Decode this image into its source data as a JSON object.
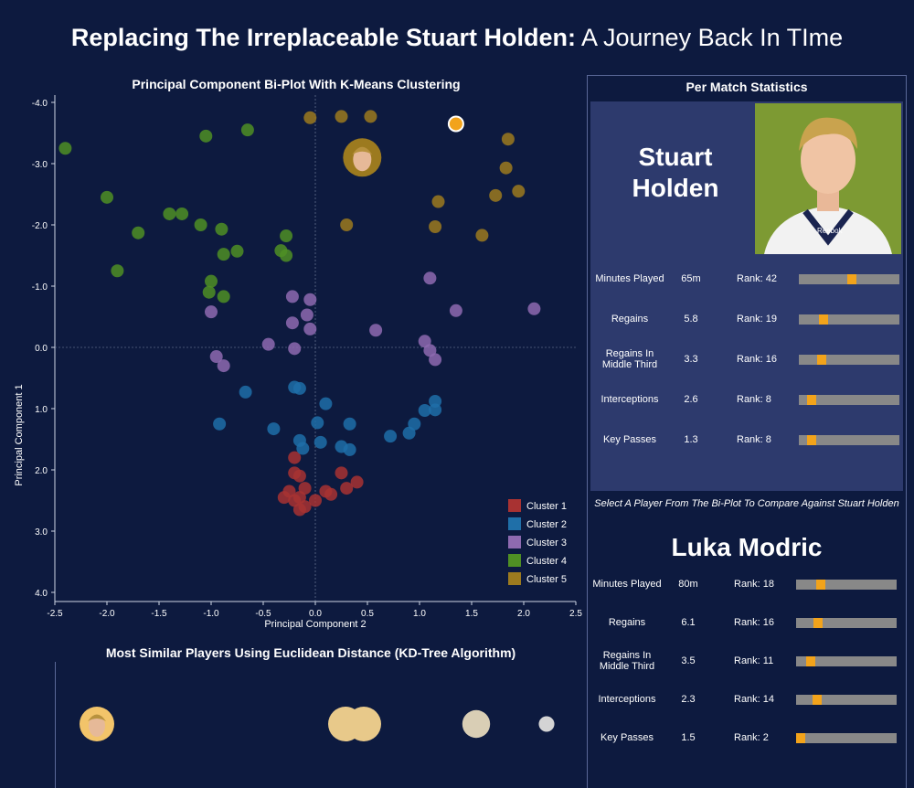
{
  "title": {
    "bold": "Replacing The Irreplaceable Stuart Holden:",
    "light": " A Journey Back In TIme"
  },
  "biplot": {
    "title": "Principal Component Bi-Plot With K-Means Clustering",
    "xlabel": "Principal Component 2",
    "ylabel": "Principal Component 1",
    "xticks": [
      "-2.5",
      "-2.0",
      "-1.5",
      "-1.0",
      "-0.5",
      "0.0",
      "0.5",
      "1.0",
      "1.5",
      "2.0",
      "2.5"
    ],
    "yticks": [
      "-4.0",
      "-3.0",
      "-2.0",
      "-1.0",
      "0.0",
      "1.0",
      "2.0",
      "3.0",
      "4.0"
    ],
    "legend": [
      {
        "label": "Cluster 1",
        "color": "#a83232"
      },
      {
        "label": "Cluster 2",
        "color": "#1f6fa8"
      },
      {
        "label": "Cluster 3",
        "color": "#8e6ab0"
      },
      {
        "label": "Cluster 4",
        "color": "#4f8f24"
      },
      {
        "label": "Cluster 5",
        "color": "#9c7a1f"
      }
    ]
  },
  "chart_data": {
    "type": "scatter",
    "title": "Principal Component Bi-Plot With K-Means Clustering",
    "xlabel": "Principal Component 2",
    "ylabel": "Principal Component 1",
    "xlim": [
      -2.5,
      2.5
    ],
    "ylim": [
      -4.0,
      4.0
    ],
    "y_axis_inverted": true,
    "grid": false,
    "legend_position": "bottom-right",
    "highlighted_player": {
      "cluster": 5,
      "x": 0.45,
      "y": -3.1
    },
    "selected_point": {
      "x": 1.35,
      "y": -3.65
    },
    "series": [
      {
        "name": "Cluster 1",
        "points": [
          [
            -0.2,
            1.8
          ],
          [
            -0.2,
            2.05
          ],
          [
            -0.15,
            2.1
          ],
          [
            -0.1,
            2.3
          ],
          [
            -0.15,
            2.45
          ],
          [
            -0.3,
            2.45
          ],
          [
            -0.2,
            2.5
          ],
          [
            -0.1,
            2.6
          ],
          [
            -0.15,
            2.65
          ],
          [
            0.0,
            2.5
          ],
          [
            0.1,
            2.35
          ],
          [
            0.15,
            2.4
          ],
          [
            0.25,
            2.05
          ],
          [
            0.3,
            2.3
          ],
          [
            0.4,
            2.2
          ],
          [
            -0.25,
            2.35
          ]
        ]
      },
      {
        "name": "Cluster 2",
        "points": [
          [
            -0.2,
            0.65
          ],
          [
            -0.15,
            0.67
          ],
          [
            0.1,
            0.92
          ],
          [
            -0.67,
            0.73
          ],
          [
            -0.92,
            1.25
          ],
          [
            -0.4,
            1.33
          ],
          [
            -0.15,
            1.52
          ],
          [
            -0.12,
            1.65
          ],
          [
            0.02,
            1.23
          ],
          [
            0.05,
            1.55
          ],
          [
            0.25,
            1.62
          ],
          [
            0.33,
            1.67
          ],
          [
            0.33,
            1.25
          ],
          [
            0.72,
            1.45
          ],
          [
            0.9,
            1.4
          ],
          [
            0.95,
            1.25
          ],
          [
            1.05,
            1.03
          ],
          [
            1.15,
            0.88
          ],
          [
            1.15,
            1.02
          ]
        ]
      },
      {
        "name": "Cluster 3",
        "points": [
          [
            -0.22,
            -0.83
          ],
          [
            -0.05,
            -0.78
          ],
          [
            -0.08,
            -0.53
          ],
          [
            -0.22,
            -0.4
          ],
          [
            -0.05,
            -0.3
          ],
          [
            -0.2,
            0.02
          ],
          [
            -0.45,
            -0.05
          ],
          [
            -0.95,
            0.15
          ],
          [
            -0.88,
            0.3
          ],
          [
            -1.0,
            -0.58
          ],
          [
            0.58,
            -0.28
          ],
          [
            1.05,
            -0.1
          ],
          [
            1.1,
            0.05
          ],
          [
            1.15,
            0.2
          ],
          [
            1.35,
            -0.6
          ],
          [
            2.1,
            -0.63
          ],
          [
            1.1,
            -1.13
          ]
        ]
      },
      {
        "name": "Cluster 4",
        "points": [
          [
            -2.4,
            -3.25
          ],
          [
            -2.0,
            -2.45
          ],
          [
            -1.7,
            -1.87
          ],
          [
            -1.4,
            -2.18
          ],
          [
            -1.28,
            -2.18
          ],
          [
            -1.1,
            -2.0
          ],
          [
            -0.9,
            -1.93
          ],
          [
            -0.88,
            -1.52
          ],
          [
            -0.75,
            -1.57
          ],
          [
            -1.0,
            -1.08
          ],
          [
            -1.02,
            -0.9
          ],
          [
            -0.88,
            -0.83
          ],
          [
            -1.9,
            -1.25
          ],
          [
            -1.05,
            -3.45
          ],
          [
            -0.65,
            -3.55
          ],
          [
            -0.28,
            -1.82
          ],
          [
            -0.33,
            -1.58
          ],
          [
            -0.28,
            -1.5
          ]
        ]
      },
      {
        "name": "Cluster 5",
        "points": [
          [
            -0.05,
            -3.75
          ],
          [
            0.25,
            -3.77
          ],
          [
            0.53,
            -3.77
          ],
          [
            1.85,
            -3.4
          ],
          [
            1.83,
            -2.93
          ],
          [
            1.95,
            -2.55
          ],
          [
            1.73,
            -2.48
          ],
          [
            1.6,
            -1.83
          ],
          [
            1.18,
            -2.38
          ],
          [
            1.15,
            -1.97
          ],
          [
            0.3,
            -2.0
          ]
        ]
      }
    ]
  },
  "stats_panel": {
    "title": "Per Match Statistics",
    "player_name": "Stuart Holden",
    "photo_brand": "Reebok",
    "rows": [
      {
        "label": "Minutes Played",
        "value": "65m",
        "rank": "Rank: 42",
        "pos": 0.48
      },
      {
        "label": "Regains",
        "value": "5.8",
        "rank": "Rank: 19",
        "pos": 0.2
      },
      {
        "label": "Regains In Middle Third",
        "value": "3.3",
        "rank": "Rank: 16",
        "pos": 0.18
      },
      {
        "label": "Interceptions",
        "value": "2.6",
        "rank": "Rank: 8",
        "pos": 0.08
      },
      {
        "label": "Key Passes",
        "value": "1.3",
        "rank": "Rank: 8",
        "pos": 0.08
      }
    ]
  },
  "compare_panel": {
    "prompt": "Select A Player From The Bi-Plot To Compare Against Stuart Holden",
    "player_name": "Luka Modric",
    "rows": [
      {
        "label": "Minutes Played",
        "value": "80m",
        "rank": "Rank: 18",
        "pos": 0.2
      },
      {
        "label": "Regains",
        "value": "6.1",
        "rank": "Rank: 16",
        "pos": 0.17
      },
      {
        "label": "Regains In Middle Third",
        "value": "3.5",
        "rank": "Rank: 11",
        "pos": 0.1
      },
      {
        "label": "Interceptions",
        "value": "2.3",
        "rank": "Rank: 14",
        "pos": 0.16
      },
      {
        "label": "Key Passes",
        "value": "1.5",
        "rank": "Rank: 2",
        "pos": 0.0
      }
    ]
  },
  "similar_players": {
    "title": "Most Similar Players Using Euclidean Distance (KD-Tree Algorithm)",
    "bubbles": [
      {
        "color": "#f2c46a",
        "size": 1.0
      },
      {
        "color": "#e8c98a",
        "size": 1.0
      },
      {
        "color": "#e8c98a",
        "size": 1.0
      },
      {
        "color": "#d9ceb5",
        "size": 0.8
      },
      {
        "color": "#d4d4d4",
        "size": 0.45
      }
    ]
  }
}
